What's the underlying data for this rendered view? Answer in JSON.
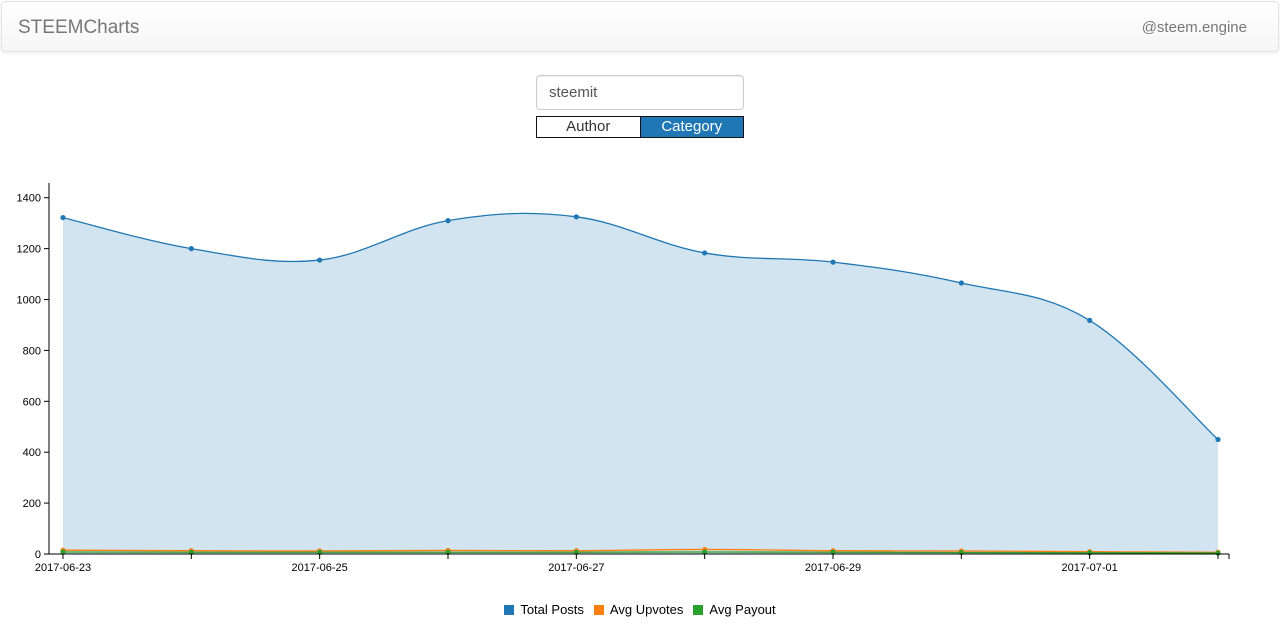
{
  "nav": {
    "brand": "STEEMCharts",
    "link": "@steem.engine"
  },
  "search": {
    "value": "steemit"
  },
  "toggle": {
    "author_label": "Author",
    "category_label": "Category",
    "selected": "Category"
  },
  "chart_data": {
    "type": "area",
    "x": [
      "2017-06-23",
      "2017-06-24",
      "2017-06-25",
      "2017-06-26",
      "2017-06-27",
      "2017-06-28",
      "2017-06-29",
      "2017-06-30",
      "2017-07-01",
      "2017-07-02"
    ],
    "x_tick_labels": [
      "2017-06-23",
      "2017-06-25",
      "2017-06-27",
      "2017-06-29",
      "2017-07-01"
    ],
    "ylim": [
      0,
      1450
    ],
    "y_ticks": [
      0,
      200,
      400,
      600,
      800,
      1000,
      1200,
      1400
    ],
    "series": [
      {
        "name": "Total Posts",
        "color": "#1f77b4",
        "values": [
          1322,
          1200,
          1155,
          1310,
          1325,
          1183,
          1147,
          1065,
          918,
          450
        ]
      },
      {
        "name": "Avg Upvotes",
        "color": "#ff7f0e",
        "values": [
          15,
          13,
          12,
          14,
          13,
          18,
          13,
          12,
          9,
          7
        ]
      },
      {
        "name": "Avg Payout",
        "color": "#2ca02c",
        "values": [
          8,
          7,
          7,
          7,
          7,
          8,
          7,
          6,
          5,
          4
        ]
      }
    ],
    "legend_position": "bottom"
  }
}
